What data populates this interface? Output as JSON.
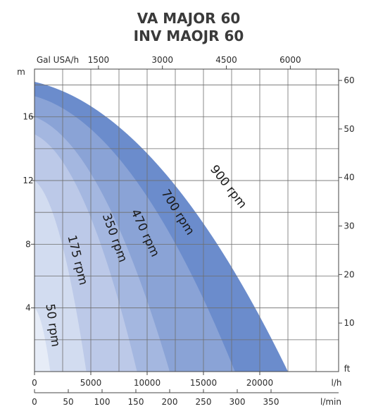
{
  "title_line1": "VA MAJOR 60",
  "title_line2": "INV MAOJR 60",
  "chart_data": {
    "type": "area",
    "x_unit": "l/h",
    "xlim": [
      0,
      27000
    ],
    "ylim": [
      0,
      19
    ],
    "grid": true,
    "axes": {
      "left": {
        "unit": "m",
        "ticks": [
          4,
          8,
          12,
          16
        ]
      },
      "right": {
        "unit": "ft",
        "ticks": [
          10,
          20,
          30,
          40,
          50,
          60
        ]
      },
      "top": {
        "unit": "Gal USA/h",
        "ticks": [
          1500,
          3000,
          4500,
          6000
        ]
      },
      "bottom": {
        "unit": "l/h",
        "ticks": [
          0,
          5000,
          10000,
          15000,
          20000
        ]
      },
      "bottom2": {
        "unit": "l/min",
        "ticks": [
          0,
          50,
          100,
          150,
          200,
          250,
          300,
          350
        ]
      }
    },
    "series": [
      {
        "name": "900 rpm",
        "color": "#6b8ccc",
        "shut_off_head": 18.2,
        "max_flow": 22500
      },
      {
        "name": "700 rpm",
        "color": "#8aa3d6",
        "shut_off_head": 17.3,
        "max_flow": 17800
      },
      {
        "name": "470 rpm",
        "color": "#a4b7e0",
        "shut_off_head": 16.0,
        "max_flow": 12000
      },
      {
        "name": "350 rpm",
        "color": "#bcc9e8",
        "shut_off_head": 14.9,
        "max_flow": 9100
      },
      {
        "name": "175 rpm",
        "color": "#d2dcf0",
        "shut_off_head": 12.0,
        "max_flow": 4600
      },
      {
        "name": "50 rpm",
        "color": "#e6ecf7",
        "shut_off_head": 4.0,
        "max_flow": 1400
      }
    ]
  }
}
